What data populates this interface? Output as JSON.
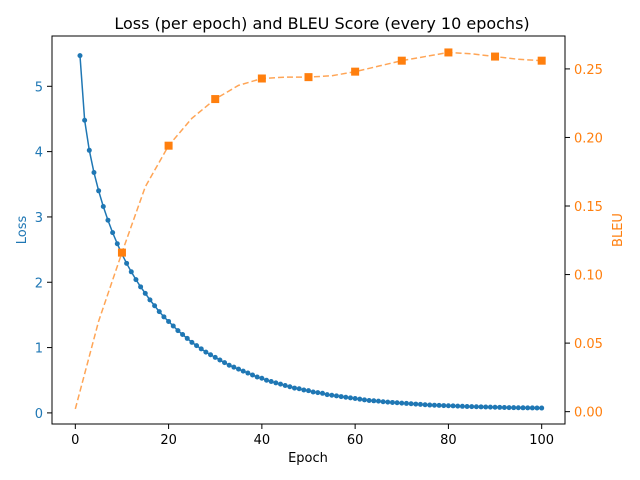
{
  "chart_data": {
    "type": "line",
    "title": "Loss (per epoch) and BLEU Score (every 10 epochs)",
    "xlabel": "Epoch",
    "ylabel_left": "Loss",
    "ylabel_right": "BLEU",
    "xlim": [
      -5,
      105
    ],
    "ylim_left": [
      -0.17,
      5.77
    ],
    "ylim_right": [
      -0.009,
      0.274
    ],
    "xticks": [
      0,
      20,
      40,
      60,
      80,
      100
    ],
    "yticks_left": [
      0,
      1,
      2,
      3,
      4,
      5
    ],
    "yticks_right": [
      0.0,
      0.05,
      0.1,
      0.15,
      0.2,
      0.25
    ],
    "xtick_labels": [
      "0",
      "20",
      "40",
      "60",
      "80",
      "100"
    ],
    "ytick_labels_left": [
      "0",
      "1",
      "2",
      "3",
      "4",
      "5"
    ],
    "ytick_labels_right": [
      "0.00",
      "0.05",
      "0.10",
      "0.15",
      "0.20",
      "0.25"
    ],
    "grid": false,
    "colors": {
      "loss": "#1f77b4",
      "bleu": "#ff7f0e"
    },
    "series": [
      {
        "name": "Loss",
        "axis": "left",
        "x": [
          1,
          2,
          3,
          4,
          5,
          6,
          7,
          8,
          9,
          10,
          11,
          12,
          13,
          14,
          15,
          16,
          17,
          18,
          19,
          20,
          21,
          22,
          23,
          24,
          25,
          26,
          27,
          28,
          29,
          30,
          31,
          32,
          33,
          34,
          35,
          36,
          37,
          38,
          39,
          40,
          41,
          42,
          43,
          44,
          45,
          46,
          47,
          48,
          49,
          50,
          51,
          52,
          53,
          54,
          55,
          56,
          57,
          58,
          59,
          60,
          61,
          62,
          63,
          64,
          65,
          66,
          67,
          68,
          69,
          70,
          71,
          72,
          73,
          74,
          75,
          76,
          77,
          78,
          79,
          80,
          81,
          82,
          83,
          84,
          85,
          86,
          87,
          88,
          89,
          90,
          91,
          92,
          93,
          94,
          95,
          96,
          97,
          98,
          99,
          100
        ],
        "values": [
          5.47,
          4.48,
          4.02,
          3.68,
          3.4,
          3.16,
          2.95,
          2.76,
          2.59,
          2.43,
          2.29,
          2.16,
          2.04,
          1.93,
          1.83,
          1.73,
          1.64,
          1.55,
          1.47,
          1.4,
          1.33,
          1.26,
          1.2,
          1.14,
          1.08,
          1.03,
          0.98,
          0.93,
          0.89,
          0.85,
          0.81,
          0.77,
          0.73,
          0.7,
          0.67,
          0.64,
          0.61,
          0.58,
          0.55,
          0.53,
          0.5,
          0.48,
          0.46,
          0.44,
          0.42,
          0.4,
          0.38,
          0.37,
          0.35,
          0.34,
          0.32,
          0.31,
          0.3,
          0.28,
          0.27,
          0.26,
          0.25,
          0.24,
          0.23,
          0.22,
          0.21,
          0.2,
          0.19,
          0.185,
          0.18,
          0.17,
          0.165,
          0.16,
          0.155,
          0.15,
          0.145,
          0.14,
          0.135,
          0.13,
          0.125,
          0.12,
          0.118,
          0.115,
          0.112,
          0.11,
          0.107,
          0.104,
          0.101,
          0.098,
          0.096,
          0.094,
          0.092,
          0.09,
          0.088,
          0.086,
          0.084,
          0.082,
          0.081,
          0.08,
          0.079,
          0.078,
          0.077,
          0.076,
          0.075,
          0.074
        ]
      },
      {
        "name": "BLEU",
        "axis": "right",
        "x": [
          10,
          20,
          30,
          40,
          50,
          60,
          70,
          80,
          90,
          100
        ],
        "values": [
          0.116,
          0.194,
          0.228,
          0.243,
          0.244,
          0.248,
          0.256,
          0.262,
          0.259,
          0.256
        ]
      }
    ],
    "fit_curve": {
      "axis": "right",
      "style": "dashed",
      "x": [
        0,
        5,
        10,
        15,
        20,
        25,
        30,
        35,
        40,
        45,
        50,
        55,
        60,
        65,
        70,
        75,
        80,
        85,
        90,
        95,
        100
      ],
      "values": [
        0.002,
        0.066,
        0.116,
        0.164,
        0.194,
        0.214,
        0.228,
        0.238,
        0.243,
        0.244,
        0.244,
        0.245,
        0.248,
        0.252,
        0.256,
        0.259,
        0.262,
        0.261,
        0.259,
        0.257,
        0.256
      ]
    }
  }
}
